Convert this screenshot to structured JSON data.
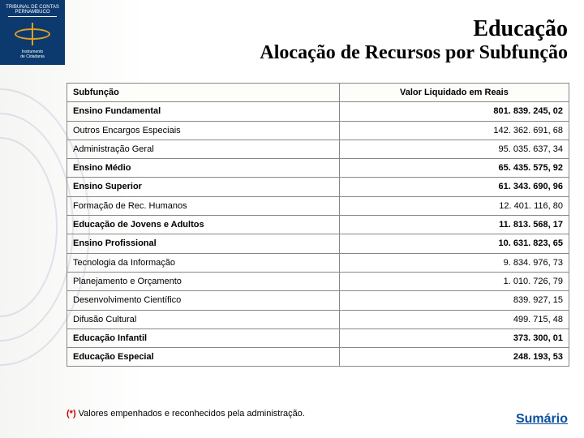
{
  "sidebar": {
    "line1": "TRIBUNAL DE CONTAS",
    "line2": "PERNAMBUCO",
    "sub1": "Instrumento",
    "sub2": "de Cidadania"
  },
  "title": {
    "line1": "Educação",
    "line2": "Alocação de Recursos por Subfunção"
  },
  "table": {
    "header_left": "Subfunção",
    "header_right": "Valor Liquidado em Reais",
    "rows": [
      {
        "label": "Ensino Fundamental",
        "value": "801. 839. 245, 02",
        "bold": true
      },
      {
        "label": "Outros Encargos Especiais",
        "value": "142. 362. 691, 68",
        "bold": false
      },
      {
        "label": "Administração Geral",
        "value": "95. 035. 637, 34",
        "bold": false
      },
      {
        "label": "Ensino Médio",
        "value": "65. 435. 575, 92",
        "bold": true
      },
      {
        "label": "Ensino Superior",
        "value": "61. 343. 690, 96",
        "bold": true
      },
      {
        "label": "Formação de Rec. Humanos",
        "value": "12. 401. 116, 80",
        "bold": false
      },
      {
        "label": "Educação de Jovens e Adultos",
        "value": "11. 813. 568, 17",
        "bold": true
      },
      {
        "label": "Ensino Profissional",
        "value": "10. 631. 823, 65",
        "bold": true
      },
      {
        "label": "Tecnologia da Informação",
        "value": "9. 834. 976, 73",
        "bold": false
      },
      {
        "label": "Planejamento e Orçamento",
        "value": "1. 010. 726, 79",
        "bold": false
      },
      {
        "label": "Desenvolvimento Científico",
        "value": "839. 927, 15",
        "bold": false
      },
      {
        "label": "Difusão Cultural",
        "value": "499. 715, 48",
        "bold": false
      },
      {
        "label": "Educação Infantil",
        "value": "373. 300, 01",
        "bold": true
      },
      {
        "label": "Educação Especial",
        "value": "248. 193, 53",
        "bold": true
      }
    ]
  },
  "footnote": {
    "marker": "(*)",
    "text": " Valores empenhados e reconhecidos pela administração."
  },
  "link_label": "Sumário"
}
